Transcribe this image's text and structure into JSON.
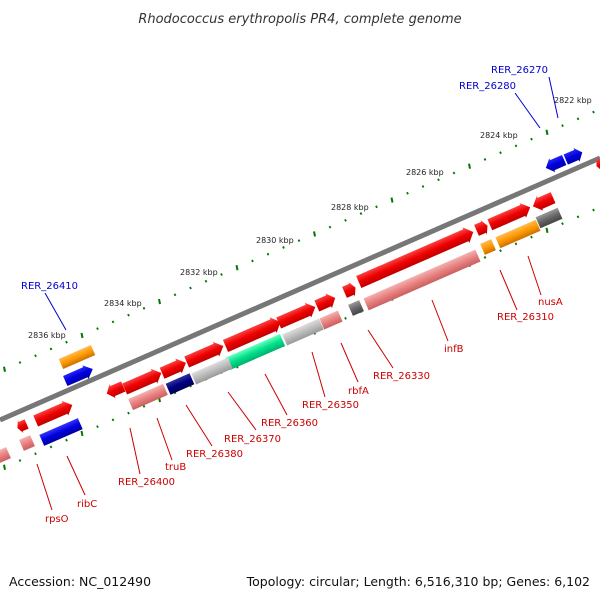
{
  "title": "Rhodococcus erythropolis PR4, complete genome",
  "footer": {
    "accession": "Accession: NC_012490",
    "topology": "Topology: circular; Length: 6,516,310 bp; Genes: 6,102"
  },
  "axis_ticks": [
    "2822 kbp",
    "2824 kbp",
    "2826 kbp",
    "2828 kbp",
    "2830 kbp",
    "2832 kbp",
    "2834 kbp",
    "2836 kbp"
  ],
  "gene_labels": [
    {
      "name": "RER_26270",
      "color": "#0000cc"
    },
    {
      "name": "RER_26280",
      "color": "#0000cc"
    },
    {
      "name": "RER_26410",
      "color": "#0000cc"
    },
    {
      "name": "nusA",
      "color": "#cc0000"
    },
    {
      "name": "RER_26310",
      "color": "#cc0000"
    },
    {
      "name": "infB",
      "color": "#cc0000"
    },
    {
      "name": "RER_26330",
      "color": "#cc0000"
    },
    {
      "name": "rbfA",
      "color": "#cc0000"
    },
    {
      "name": "RER_26350",
      "color": "#cc0000"
    },
    {
      "name": "RER_26360",
      "color": "#cc0000"
    },
    {
      "name": "RER_26370",
      "color": "#cc0000"
    },
    {
      "name": "RER_26380",
      "color": "#cc0000"
    },
    {
      "name": "truB",
      "color": "#cc0000"
    },
    {
      "name": "RER_26400",
      "color": "#cc0000"
    },
    {
      "name": "ribC",
      "color": "#cc0000"
    },
    {
      "name": "rpsO",
      "color": "#cc0000"
    }
  ],
  "colors": {
    "backbone": "#7a7a7a",
    "forward": "#ee0000",
    "reverse_blue": "#0000dd",
    "pink": "#e88080",
    "orange": "#ff9900",
    "gray": "#666666",
    "light_gray": "#bbbbbb",
    "green": "#00e08a",
    "navy": "#000080",
    "ticks": "#007700"
  }
}
